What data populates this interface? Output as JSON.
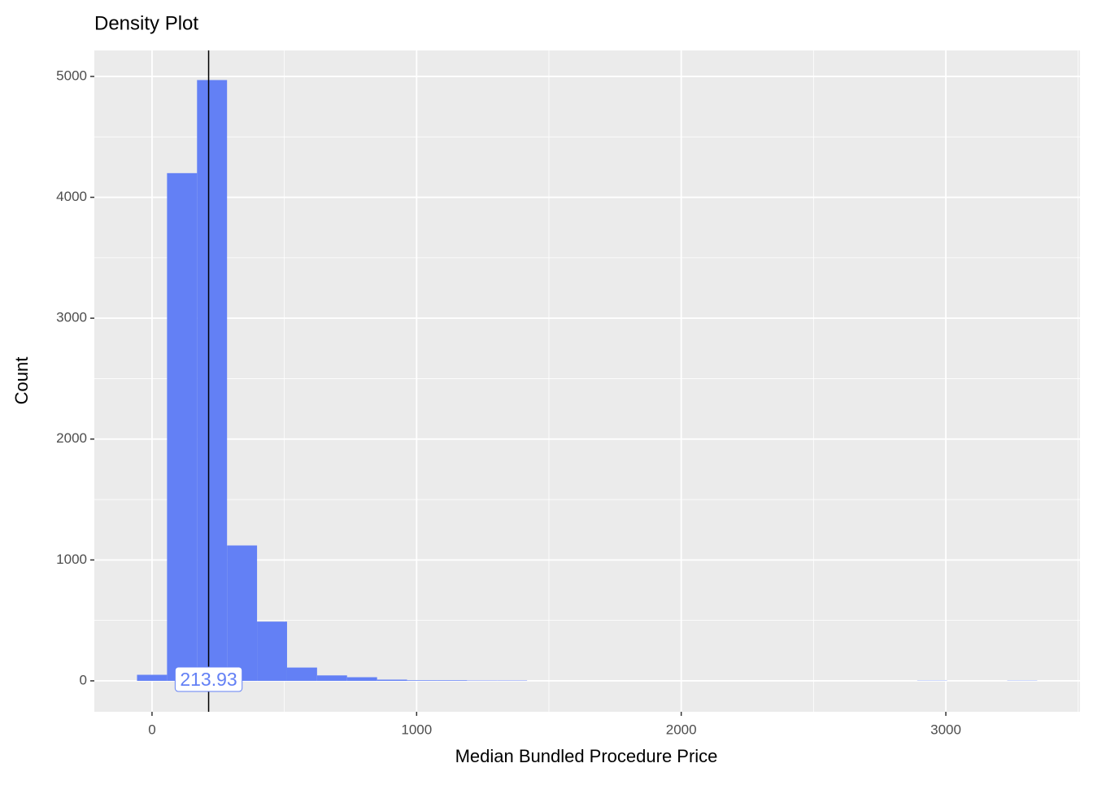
{
  "chart_data": {
    "type": "histogram",
    "title": "Density Plot",
    "x_label": "Median Bundled Procedure Price",
    "y_label": "Count",
    "bins": [
      -56.7,
      56.7,
      170.1,
      283.5,
      396.9,
      510.3,
      623.7,
      737.1,
      850.5,
      963.9,
      1077.3,
      1190.7,
      1304.1,
      1417.5,
      1530.9,
      1644.3,
      1757.7,
      1871.1,
      1984.5,
      2097.9,
      2211.3,
      2324.7,
      2438.1,
      2551.5,
      2664.9,
      2778.3,
      2891.7,
      3005.1,
      3118.5,
      3231.9,
      3345.3
    ],
    "values": [
      50,
      4200,
      4970,
      1120,
      490,
      110,
      45,
      30,
      10,
      5,
      5,
      3,
      3,
      0,
      0,
      0,
      0,
      0,
      0,
      0,
      0,
      0,
      0,
      0,
      0,
      0,
      2,
      0,
      0,
      2
    ],
    "color": "#6380f5",
    "vline": 213.93,
    "xlim": [
      -218,
      3507
    ],
    "ylim": [
      -256,
      5215
    ],
    "xticks": [
      0,
      1000,
      2000,
      3000
    ],
    "yticks": [
      0,
      1000,
      2000,
      3000,
      4000,
      5000
    ],
    "minor_xticks": [
      500,
      1500,
      2500,
      3500
    ],
    "minor_yticks": [
      500,
      1500,
      2500,
      3500,
      4500
    ],
    "grid": true
  }
}
